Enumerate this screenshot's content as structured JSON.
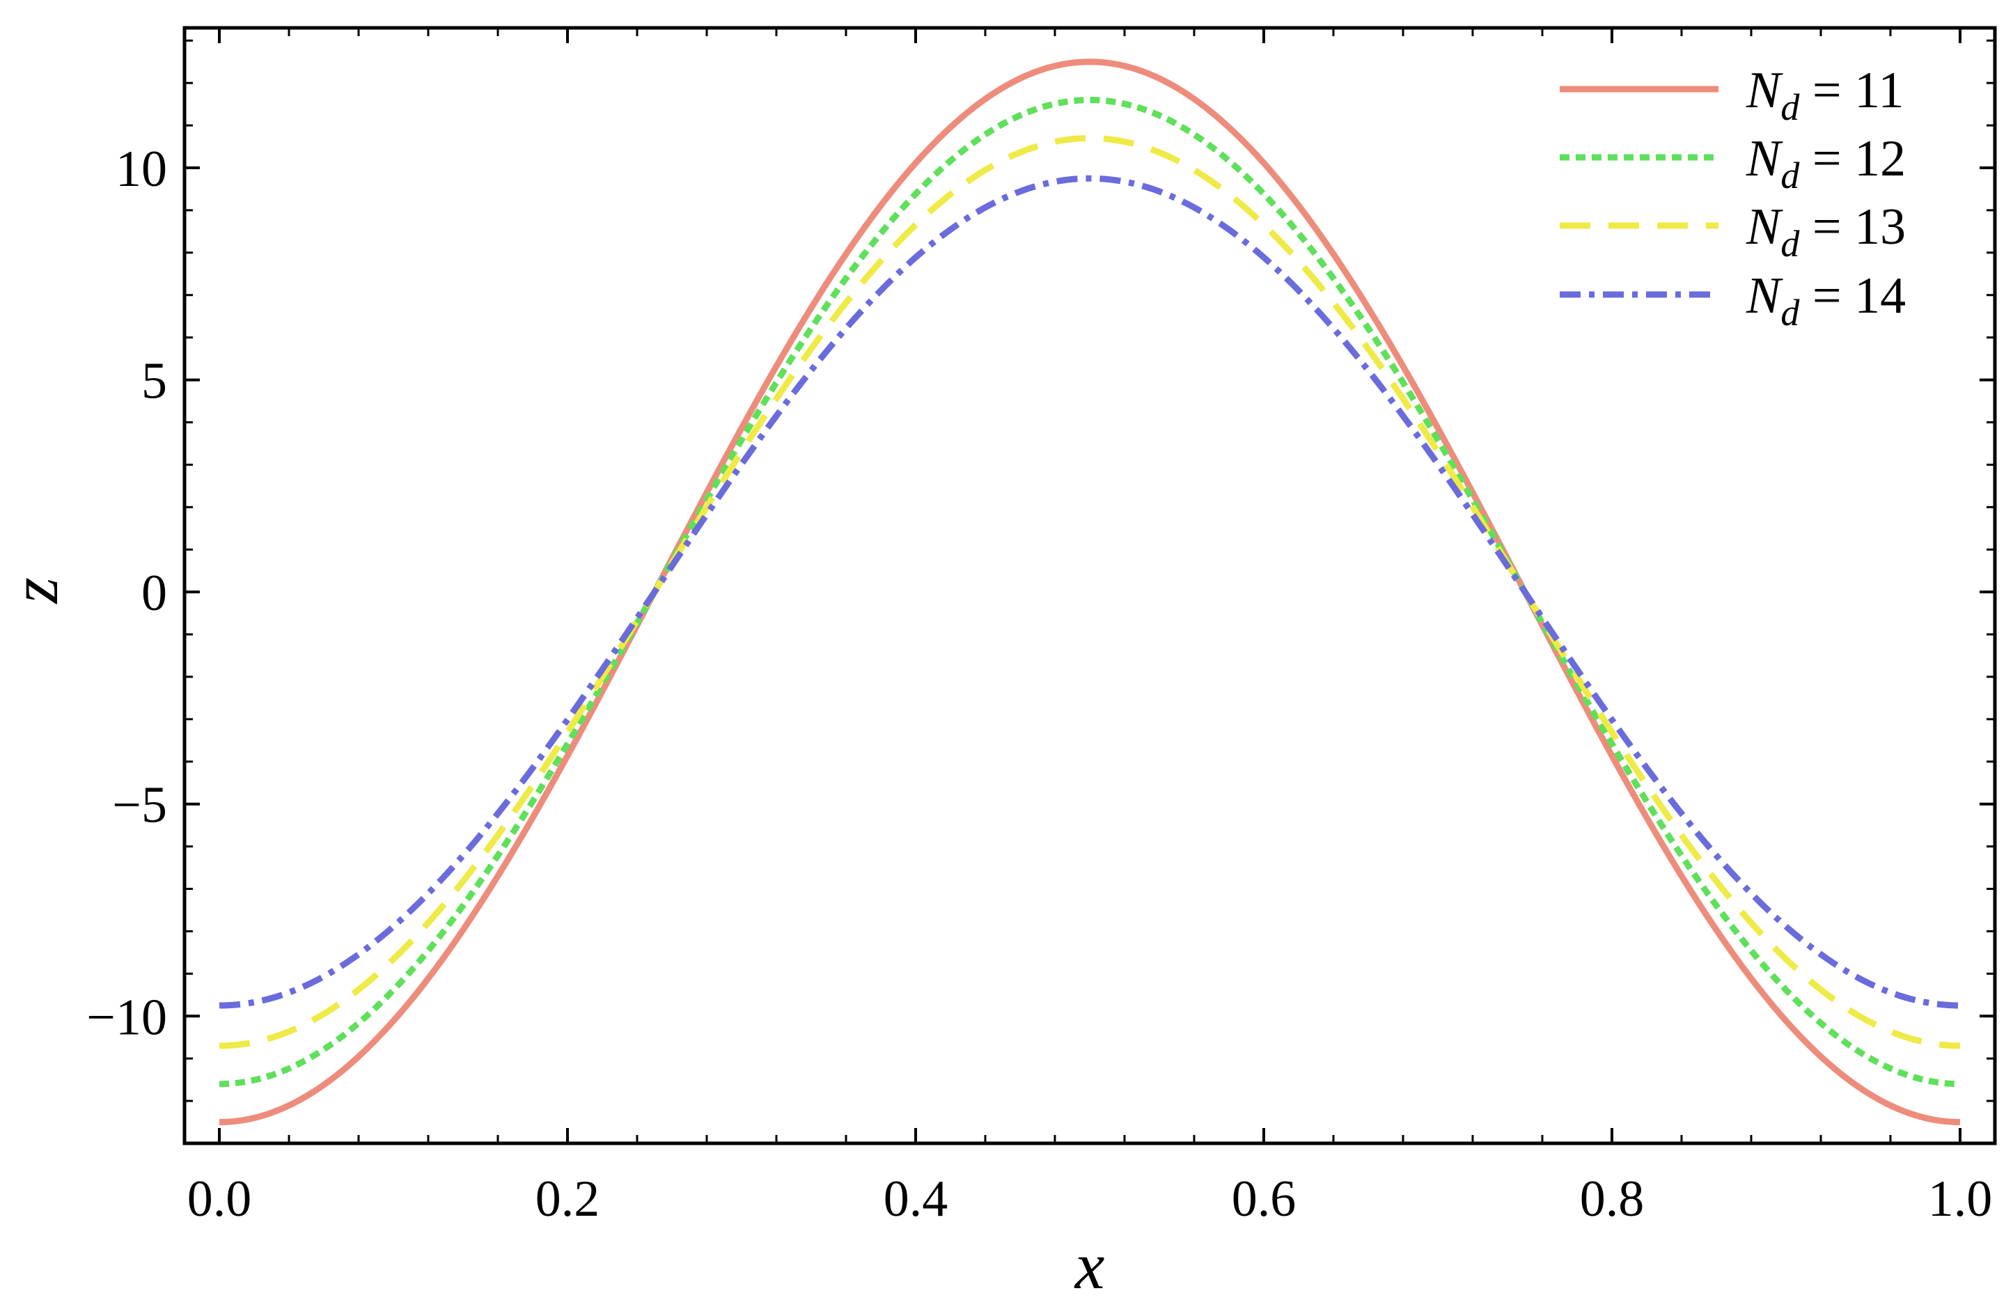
{
  "chart_data": {
    "type": "line",
    "title": "",
    "xlabel": "x",
    "ylabel": "z",
    "xlim": [
      -0.02,
      1.02
    ],
    "ylim": [
      -13,
      13.3
    ],
    "xticks": [
      0.0,
      0.2,
      0.4,
      0.6,
      0.8,
      1.0
    ],
    "xtick_labels": [
      "0.0",
      "0.2",
      "0.4",
      "0.6",
      "0.8",
      "1.0"
    ],
    "yticks": [
      -10,
      -5,
      0,
      5,
      10
    ],
    "ytick_labels": [
      "−10",
      "−5",
      "0",
      "5",
      "10"
    ],
    "grid": false,
    "legend_position": "top-right",
    "series": [
      {
        "name": "N_d = 11",
        "label_main": "N",
        "label_sub": "d",
        "label_rest": " = 11",
        "amplitude": 12.5,
        "color": "#EE8C7C",
        "style": "solid",
        "x": [
          0.0,
          0.05,
          0.1,
          0.15,
          0.2,
          0.25,
          0.3,
          0.35,
          0.4,
          0.45,
          0.5,
          0.55,
          0.6,
          0.65,
          0.7,
          0.75,
          0.8,
          0.85,
          0.9,
          0.95,
          1.0
        ],
        "y": [
          -12.5,
          -11.89,
          -10.11,
          -7.35,
          -3.86,
          0.0,
          3.86,
          7.35,
          10.11,
          11.89,
          12.5,
          11.89,
          10.11,
          7.35,
          3.86,
          0.0,
          -3.86,
          -7.35,
          -10.11,
          -11.89,
          -12.5
        ]
      },
      {
        "name": "N_d = 12",
        "label_main": "N",
        "label_sub": "d",
        "label_rest": " = 12",
        "amplitude": 11.6,
        "color": "#5EE05A",
        "style": "dotted",
        "x": [
          0.0,
          0.05,
          0.1,
          0.15,
          0.2,
          0.25,
          0.3,
          0.35,
          0.4,
          0.45,
          0.5,
          0.55,
          0.6,
          0.65,
          0.7,
          0.75,
          0.8,
          0.85,
          0.9,
          0.95,
          1.0
        ],
        "y": [
          -11.6,
          -11.03,
          -9.38,
          -6.82,
          -3.58,
          0.0,
          3.58,
          6.82,
          9.38,
          11.03,
          11.6,
          11.03,
          9.38,
          6.82,
          3.58,
          0.0,
          -3.58,
          -6.82,
          -9.38,
          -11.03,
          -11.6
        ]
      },
      {
        "name": "N_d = 13",
        "label_main": "N",
        "label_sub": "d",
        "label_rest": " = 13",
        "amplitude": 10.7,
        "color": "#EFEA45",
        "style": "dashed",
        "x": [
          0.0,
          0.05,
          0.1,
          0.15,
          0.2,
          0.25,
          0.3,
          0.35,
          0.4,
          0.45,
          0.5,
          0.55,
          0.6,
          0.65,
          0.7,
          0.75,
          0.8,
          0.85,
          0.9,
          0.95,
          1.0
        ],
        "y": [
          -10.7,
          -10.18,
          -8.66,
          -6.29,
          -3.31,
          0.0,
          3.31,
          6.29,
          8.66,
          10.18,
          10.7,
          10.18,
          8.66,
          6.29,
          3.31,
          0.0,
          -3.31,
          -6.29,
          -8.66,
          -10.18,
          -10.7
        ]
      },
      {
        "name": "N_d = 14",
        "label_main": "N",
        "label_sub": "d",
        "label_rest": " = 14",
        "amplitude": 9.75,
        "color": "#6A6BDD",
        "style": "dashdot",
        "x": [
          0.0,
          0.05,
          0.1,
          0.15,
          0.2,
          0.25,
          0.3,
          0.35,
          0.4,
          0.45,
          0.5,
          0.55,
          0.6,
          0.65,
          0.7,
          0.75,
          0.8,
          0.85,
          0.9,
          0.95,
          1.0
        ],
        "y": [
          -9.75,
          -9.27,
          -7.89,
          -5.73,
          -3.01,
          0.0,
          3.01,
          5.73,
          7.89,
          9.27,
          9.75,
          9.27,
          7.89,
          5.73,
          3.01,
          0.0,
          -3.01,
          -5.73,
          -7.89,
          -9.27,
          -9.75
        ]
      }
    ]
  }
}
